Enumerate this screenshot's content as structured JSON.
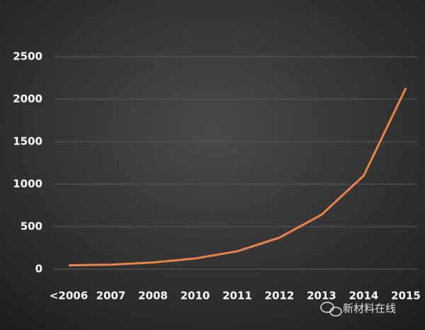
{
  "chart_data": {
    "type": "line",
    "categories": [
      "<2006",
      "2007",
      "2008",
      "2010",
      "2011",
      "2012",
      "2013",
      "2014",
      "2015"
    ],
    "series": [
      {
        "name": "",
        "color": "#e8834a",
        "values": [
          45,
          52,
          78,
          125,
          210,
          370,
          640,
          1100,
          2130
        ]
      }
    ],
    "ylim": [
      0,
      2500
    ],
    "yticks": [
      0,
      500,
      1000,
      1500,
      2000,
      2500
    ],
    "grid": true,
    "watermark": "新材料在线"
  }
}
